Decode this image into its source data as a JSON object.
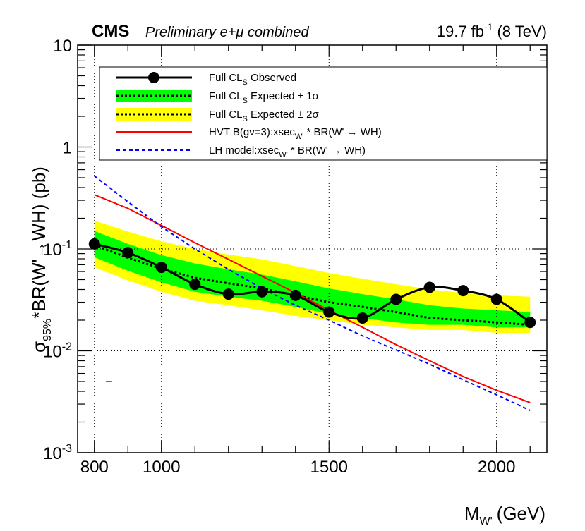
{
  "chart_data": {
    "type": "line",
    "experiment": "CMS",
    "subtitle": "Preliminary e+μ combined",
    "lumi": {
      "value": "19.7 fb",
      "exp": "-1",
      "energy": "(8 TeV)"
    },
    "xlabel": {
      "main": "M",
      "sub": "W'",
      "unit": "(GeV)"
    },
    "ylabel": {
      "sigma": "σ",
      "sub": "95%",
      "rest": "*BR(W'→WH) (pb)"
    },
    "x_range": [
      750,
      2150
    ],
    "y_range_log10": [
      -3,
      1
    ],
    "x_ticks": [
      {
        "value": 800,
        "label": "800"
      },
      {
        "value": 1000,
        "label": "1000"
      },
      {
        "value": 1500,
        "label": "1500"
      },
      {
        "value": 2000,
        "label": "2000"
      }
    ],
    "y_ticks": [
      {
        "exp": -3,
        "base": "10",
        "sup": "-3"
      },
      {
        "exp": -2,
        "base": "10",
        "sup": "-2"
      },
      {
        "exp": -1,
        "base": "10",
        "sup": "-1"
      },
      {
        "exp": 0,
        "label": "1"
      },
      {
        "exp": 1,
        "label": "10"
      }
    ],
    "grid": true,
    "legend_position": "top",
    "legend": [
      {
        "key": "obs",
        "text": "Full CL",
        "sub": "S",
        "tail": " Observed"
      },
      {
        "key": "exp1",
        "text": "Full CL",
        "sub": "S",
        "tail": "  Expected ± 1σ"
      },
      {
        "key": "exp2",
        "text": "Full CL",
        "sub": "S",
        "tail": "  Expected ± 2σ"
      },
      {
        "key": "hvt",
        "text": "HVT B(gv=3):xsec",
        "sub": "W'",
        "tail": " * BR(W' → WH)"
      },
      {
        "key": "lh",
        "text": "LH model:xsec",
        "sub": "W'",
        "tail": " * BR(W' → WH)"
      }
    ],
    "colors": {
      "observed": "#000000",
      "band1": "#00ff00",
      "band2": "#ffff00",
      "expected": "#000000",
      "hvt": "#ff0000",
      "lh": "#0000ff"
    },
    "series": [
      {
        "name": "Observed",
        "x": [
          800,
          900,
          1000,
          1100,
          1200,
          1300,
          1400,
          1500,
          1600,
          1700,
          1800,
          1900,
          2000,
          2100
        ],
        "y": [
          0.112,
          0.092,
          0.066,
          0.045,
          0.036,
          0.038,
          0.035,
          0.024,
          0.021,
          0.032,
          0.042,
          0.039,
          0.032,
          0.019
        ]
      },
      {
        "name": "Expected",
        "x": [
          800,
          900,
          1000,
          1100,
          1200,
          1300,
          1400,
          1500,
          1600,
          1700,
          1800,
          1900,
          2000,
          2100
        ],
        "y": [
          0.109,
          0.082,
          0.064,
          0.052,
          0.046,
          0.041,
          0.035,
          0.03,
          0.027,
          0.024,
          0.021,
          0.02,
          0.019,
          0.018
        ]
      },
      {
        "name": "Expected ±1σ",
        "x": [
          800,
          900,
          1000,
          1100,
          1200,
          1300,
          1400,
          1500,
          1600,
          1700,
          1800,
          1900,
          2000,
          2100
        ],
        "low": [
          0.083,
          0.061,
          0.047,
          0.038,
          0.034,
          0.031,
          0.027,
          0.023,
          0.021,
          0.019,
          0.018,
          0.018,
          0.017,
          0.017
        ],
        "high": [
          0.15,
          0.112,
          0.087,
          0.072,
          0.063,
          0.056,
          0.048,
          0.041,
          0.036,
          0.032,
          0.028,
          0.026,
          0.025,
          0.024
        ]
      },
      {
        "name": "Expected ±2σ",
        "x": [
          800,
          900,
          1000,
          1100,
          1200,
          1300,
          1400,
          1500,
          1600,
          1700,
          1800,
          1900,
          2000,
          2100
        ],
        "low": [
          0.066,
          0.049,
          0.038,
          0.031,
          0.028,
          0.025,
          0.022,
          0.02,
          0.018,
          0.017,
          0.016,
          0.016,
          0.015,
          0.015
        ],
        "high": [
          0.19,
          0.148,
          0.119,
          0.1,
          0.088,
          0.079,
          0.068,
          0.058,
          0.051,
          0.045,
          0.04,
          0.037,
          0.035,
          0.034
        ]
      },
      {
        "name": "HVT B(gv=3)",
        "x": [
          800,
          900,
          1000,
          1100,
          1200,
          1300,
          1400,
          1500,
          1600,
          1700,
          1800,
          1900,
          2000,
          2100
        ],
        "y": [
          0.34,
          0.25,
          0.17,
          0.115,
          0.079,
          0.054,
          0.037,
          0.025,
          0.017,
          0.0115,
          0.008,
          0.0056,
          0.0041,
          0.0031
        ]
      },
      {
        "name": "LH model",
        "x": [
          800,
          900,
          1000,
          1100,
          1200,
          1300,
          1400,
          1500,
          1600,
          1700,
          1800,
          1900,
          2000,
          2100
        ],
        "y": [
          0.52,
          0.29,
          0.165,
          0.1,
          0.063,
          0.041,
          0.028,
          0.02,
          0.014,
          0.0102,
          0.0074,
          0.0052,
          0.0037,
          0.0026
        ]
      }
    ],
    "stray_mark": {
      "label": "–"
    }
  }
}
